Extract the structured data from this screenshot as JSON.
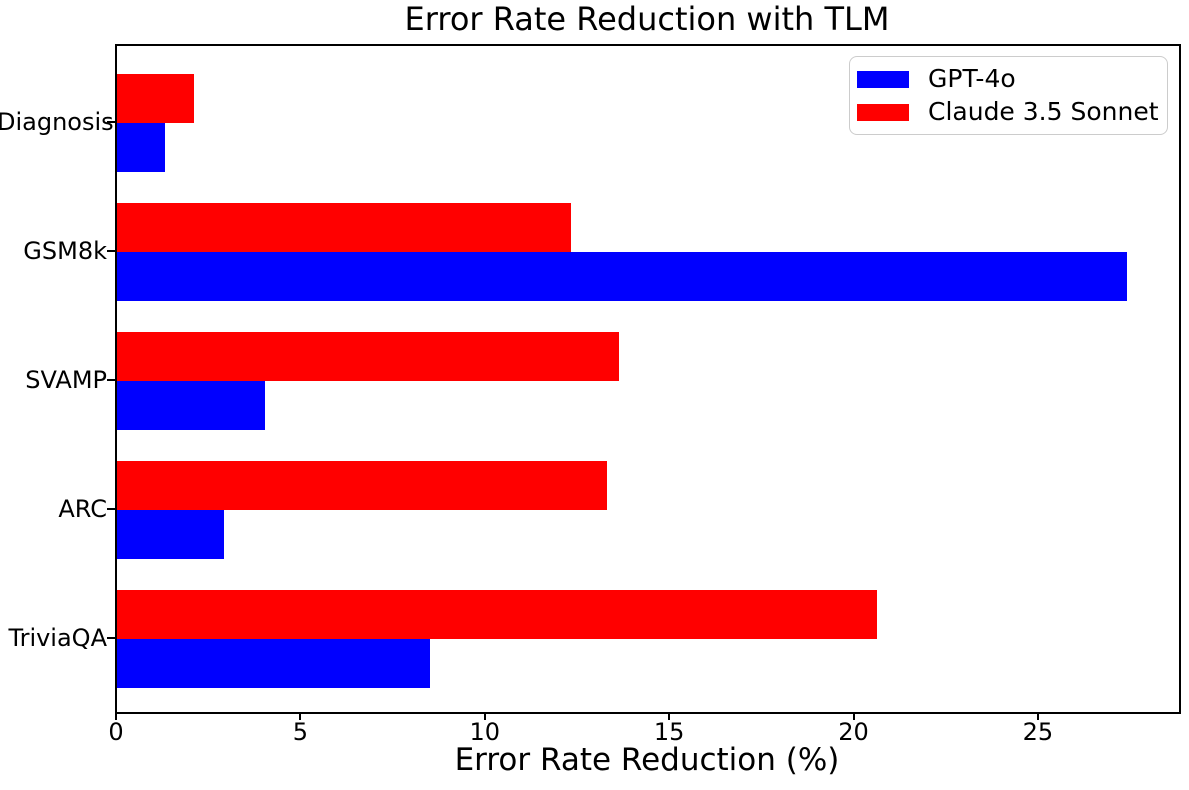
{
  "chart_data": {
    "type": "bar",
    "orientation": "horizontal",
    "title": "Error Rate Reduction with TLM",
    "xlabel": "Error Rate Reduction (%)",
    "ylabel": "",
    "categories": [
      "Diagnosis",
      "GSM8k",
      "SVAMP",
      "ARC",
      "TriviaQA"
    ],
    "series": [
      {
        "name": "GPT-4o",
        "color": "#0000ff",
        "values": [
          1.3,
          27.4,
          4.0,
          2.9,
          8.5
        ]
      },
      {
        "name": "Claude 3.5 Sonnet",
        "color": "#ff0000",
        "values": [
          2.1,
          12.3,
          13.6,
          13.3,
          20.6
        ]
      }
    ],
    "x_ticks": [
      0,
      5,
      10,
      15,
      20,
      25
    ],
    "xlim": [
      0,
      28.8
    ],
    "grid": false,
    "legend": {
      "position": "upper right",
      "entries": [
        "GPT-4o",
        "Claude 3.5 Sonnet"
      ]
    },
    "bar_group_order_top_to_bottom": [
      "Claude 3.5 Sonnet",
      "GPT-4o"
    ],
    "axis_color": "#000000",
    "text_color": "#000000",
    "background_color": "#ffffff"
  }
}
